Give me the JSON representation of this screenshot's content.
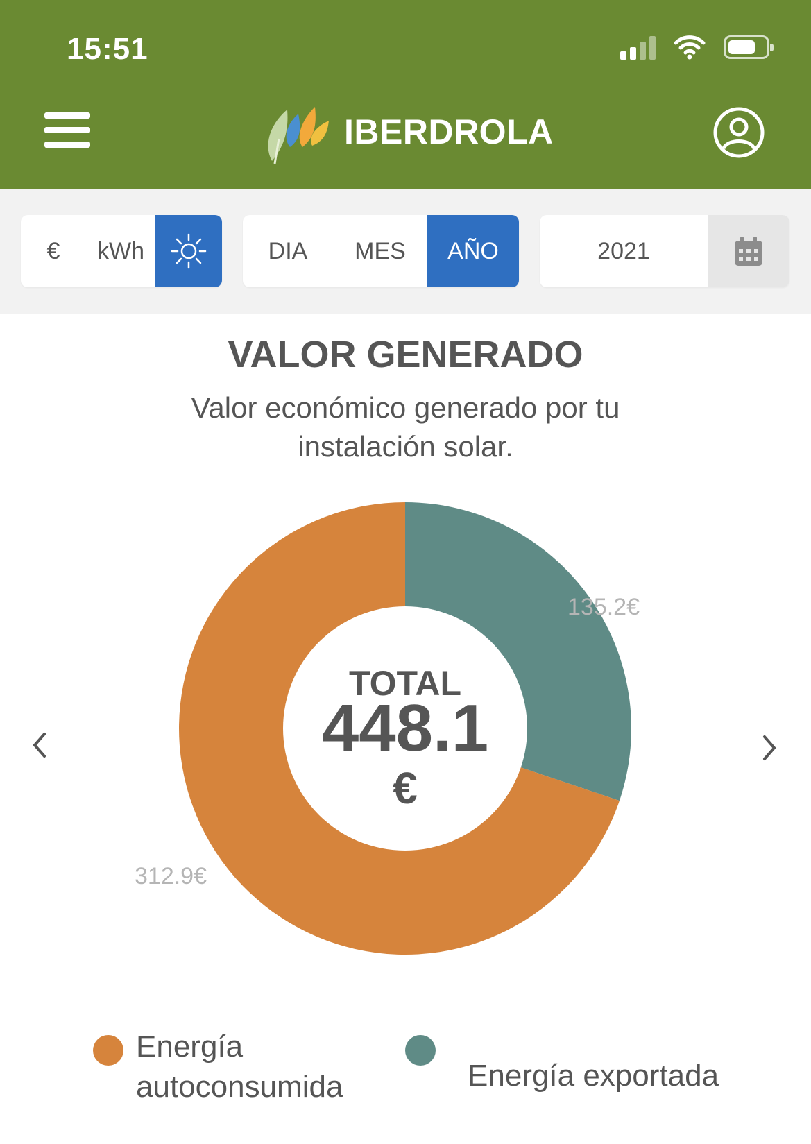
{
  "status_bar": {
    "time": "15:51"
  },
  "header": {
    "brand": "IBERDROLA",
    "menu_icon": "hamburger-menu-icon",
    "user_icon": "user-account-icon"
  },
  "filters": {
    "unit": {
      "options": [
        "€",
        "kWh"
      ],
      "solar_icon": "sun-icon",
      "active": "sun"
    },
    "period": {
      "options": [
        "DIA",
        "MES",
        "AÑO"
      ],
      "active": "AÑO"
    },
    "date": {
      "value": "2021",
      "calendar_icon": "calendar-icon"
    }
  },
  "main": {
    "title": "VALOR GENERADO",
    "subtitle": "Valor económico generado por tu instalación solar.",
    "total_label": "TOTAL",
    "total_value": "448.1",
    "total_unit": "€"
  },
  "chart_data": {
    "type": "pie",
    "donut": true,
    "title": "",
    "series": [
      {
        "name": "Energía autoconsumida",
        "value": 312.9,
        "label": "312.9€",
        "color": "#d6843c"
      },
      {
        "name": "Energía exportada",
        "value": 135.2,
        "label": "135.2€",
        "color": "#5f8b86"
      }
    ]
  },
  "legend": [
    {
      "label": "Energía autoconsumida",
      "color": "#d6843c"
    },
    {
      "label": "Energía exportada",
      "color": "#5f8b86"
    }
  ]
}
